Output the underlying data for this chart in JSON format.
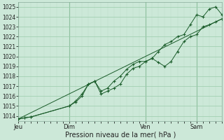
{
  "xlabel": "Pression niveau de la mer( hPa )",
  "ylim": [
    1013.5,
    1025.5
  ],
  "yticks": [
    1014,
    1015,
    1016,
    1017,
    1018,
    1019,
    1020,
    1021,
    1022,
    1023,
    1024,
    1025
  ],
  "bg_color": "#cce8d8",
  "grid_color_major": "#99ccaa",
  "grid_color_minor": "#bbddc8",
  "line_color": "#1a5c2a",
  "day_labels": [
    "Jeu",
    "Dim",
    "Ven",
    "Sam"
  ],
  "day_positions": [
    0,
    48,
    120,
    168
  ],
  "xlim": [
    0,
    192
  ],
  "series1_x": [
    0,
    6,
    12,
    48,
    54,
    60,
    66,
    72,
    78,
    84,
    90,
    96,
    102,
    108,
    114,
    120,
    126,
    132,
    138,
    144,
    150,
    156,
    162,
    168,
    174,
    180,
    186,
    192
  ],
  "series1_y": [
    1013.7,
    1013.8,
    1013.9,
    1015.0,
    1015.4,
    1016.0,
    1017.2,
    1017.5,
    1016.2,
    1016.5,
    1016.8,
    1017.2,
    1018.2,
    1018.8,
    1019.0,
    1019.5,
    1019.8,
    1019.4,
    1019.0,
    1019.5,
    1020.5,
    1021.5,
    1022.0,
    1022.2,
    1023.0,
    1023.2,
    1023.5,
    1023.8
  ],
  "series2_x": [
    0,
    6,
    12,
    48,
    54,
    60,
    66,
    72,
    78,
    84,
    90,
    96,
    102,
    108,
    114,
    120,
    126,
    132,
    138,
    144,
    150,
    156,
    162,
    168,
    174,
    180,
    186,
    192
  ],
  "series2_y": [
    1013.7,
    1013.8,
    1013.9,
    1015.0,
    1015.5,
    1016.2,
    1017.2,
    1017.5,
    1016.5,
    1016.8,
    1017.5,
    1018.0,
    1018.7,
    1019.2,
    1019.5,
    1019.5,
    1019.8,
    1020.5,
    1021.2,
    1021.5,
    1022.0,
    1022.2,
    1023.2,
    1024.2,
    1024.0,
    1024.8,
    1025.0,
    1024.2
  ],
  "series3_x": [
    0,
    192
  ],
  "series3_y": [
    1013.7,
    1023.8
  ]
}
